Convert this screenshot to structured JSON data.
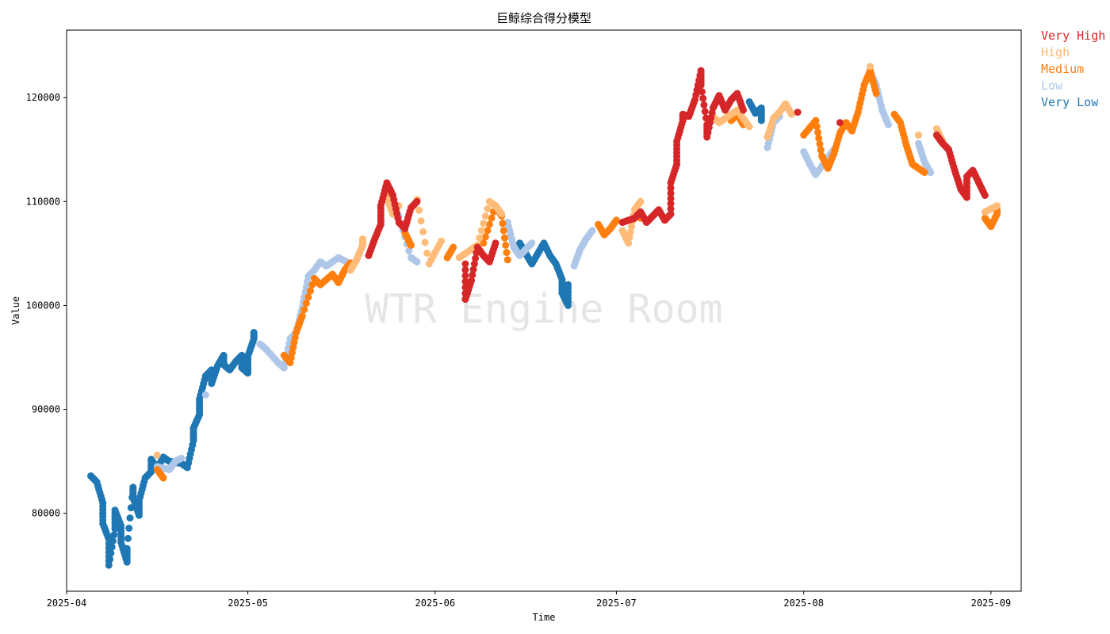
{
  "chart_data": {
    "type": "scatter",
    "title": "巨鲸综合得分模型",
    "xlabel": "Time",
    "ylabel": "Value",
    "watermark": "WTR Engine Room",
    "x_range": [
      "2025-04-01",
      "2025-09-06"
    ],
    "ylim": [
      72500,
      126500
    ],
    "y_ticks": [
      80000,
      90000,
      100000,
      110000,
      120000
    ],
    "x_ticks": [
      "2025-04-01",
      "2025-05-01",
      "2025-06-01",
      "2025-07-01",
      "2025-08-01",
      "2025-09-01"
    ],
    "x_tick_labels": [
      "2025-04",
      "2025-05",
      "2025-06",
      "2025-07",
      "2025-08",
      "2025-09"
    ],
    "legend_position": "outside-top-right",
    "legend": [
      {
        "key": "very_high",
        "label": "Very High",
        "color": "#d62728"
      },
      {
        "key": "high",
        "label": "High",
        "color": "#ffbb78"
      },
      {
        "key": "medium",
        "label": "Medium",
        "color": "#ff7f0e"
      },
      {
        "key": "low",
        "label": "Low",
        "color": "#aec7e8"
      },
      {
        "key": "very_low",
        "label": "Very Low",
        "color": "#1f77b4"
      }
    ],
    "series": [
      {
        "key": "very_low",
        "points": [
          [
            "2025-04-05",
            83600
          ],
          [
            "2025-04-06",
            83000
          ],
          [
            "2025-04-07",
            81000
          ],
          [
            "2025-04-07",
            79000
          ],
          [
            "2025-04-08",
            77500
          ],
          [
            "2025-04-08",
            75000
          ],
          [
            "2025-04-09",
            78500
          ],
          [
            "2025-04-09",
            80300
          ],
          [
            "2025-04-10",
            78800
          ],
          [
            "2025-04-10",
            77200
          ],
          [
            "2025-04-11",
            75300
          ],
          [
            "2025-04-11",
            76600
          ],
          [
            "2025-04-12",
            82500
          ],
          [
            "2025-04-12",
            81500
          ],
          [
            "2025-04-13",
            79800
          ],
          [
            "2025-04-13",
            81200
          ],
          [
            "2025-04-14",
            83400
          ],
          [
            "2025-04-15",
            84000
          ],
          [
            "2025-04-15",
            85200
          ],
          [
            "2025-04-16",
            84300
          ],
          [
            "2025-04-17",
            85400
          ],
          [
            "2025-04-18",
            85000
          ],
          [
            "2025-04-20",
            84800
          ],
          [
            "2025-04-21",
            84400
          ],
          [
            "2025-04-22",
            87000
          ],
          [
            "2025-04-22",
            88200
          ],
          [
            "2025-04-23",
            89500
          ],
          [
            "2025-04-23",
            91000
          ],
          [
            "2025-04-24",
            93200
          ],
          [
            "2025-04-25",
            93800
          ],
          [
            "2025-04-25",
            92500
          ],
          [
            "2025-04-26",
            94200
          ],
          [
            "2025-04-27",
            95200
          ],
          [
            "2025-04-27",
            94300
          ],
          [
            "2025-04-28",
            93800
          ],
          [
            "2025-04-29",
            94600
          ],
          [
            "2025-04-30",
            95200
          ],
          [
            "2025-04-30",
            94000
          ],
          [
            "2025-05-01",
            93500
          ],
          [
            "2025-05-01",
            95100
          ],
          [
            "2025-05-02",
            96800
          ],
          [
            "2025-05-02",
            97400
          ],
          [
            "2025-06-15",
            106000
          ],
          [
            "2025-06-16",
            105000
          ],
          [
            "2025-06-17",
            104000
          ],
          [
            "2025-06-18",
            105000
          ],
          [
            "2025-06-19",
            106000
          ],
          [
            "2025-06-20",
            104800
          ],
          [
            "2025-06-21",
            104000
          ],
          [
            "2025-06-22",
            102500
          ],
          [
            "2025-06-22",
            101200
          ],
          [
            "2025-06-23",
            100000
          ],
          [
            "2025-06-23",
            102000
          ],
          [
            "2025-07-23",
            119600
          ],
          [
            "2025-07-24",
            118500
          ],
          [
            "2025-07-25",
            119000
          ],
          [
            "2025-07-25",
            117800
          ]
        ]
      },
      {
        "key": "low",
        "points": [
          [
            "2025-04-16",
            84500
          ],
          [
            "2025-04-18",
            84200
          ],
          [
            "2025-04-19",
            85000
          ],
          [
            "2025-04-20",
            85300
          ],
          [
            "2025-04-24",
            91400
          ],
          [
            "2025-05-03",
            96300
          ],
          [
            "2025-05-04",
            95800
          ],
          [
            "2025-05-06",
            94500
          ],
          [
            "2025-05-07",
            94000
          ],
          [
            "2025-05-08",
            96800
          ],
          [
            "2025-05-09",
            97400
          ],
          [
            "2025-05-10",
            99800
          ],
          [
            "2025-05-11",
            102800
          ],
          [
            "2025-05-12",
            103400
          ],
          [
            "2025-05-13",
            104200
          ],
          [
            "2025-05-14",
            103800
          ],
          [
            "2025-05-16",
            104600
          ],
          [
            "2025-05-18",
            104000
          ],
          [
            "2025-05-26",
            108600
          ],
          [
            "2025-05-28",
            104600
          ],
          [
            "2025-05-29",
            104200
          ],
          [
            "2025-06-13",
            108000
          ],
          [
            "2025-06-14",
            105600
          ],
          [
            "2025-06-15",
            104800
          ],
          [
            "2025-06-16",
            105400
          ],
          [
            "2025-06-17",
            106000
          ],
          [
            "2025-06-24",
            103800
          ],
          [
            "2025-06-25",
            105400
          ],
          [
            "2025-06-26",
            106400
          ],
          [
            "2025-06-27",
            107200
          ],
          [
            "2025-07-26",
            115200
          ],
          [
            "2025-07-27",
            117600
          ],
          [
            "2025-07-28",
            118200
          ],
          [
            "2025-08-01",
            114800
          ],
          [
            "2025-08-02",
            113600
          ],
          [
            "2025-08-03",
            112600
          ],
          [
            "2025-08-05",
            114200
          ],
          [
            "2025-08-06",
            115000
          ],
          [
            "2025-08-12",
            122500
          ],
          [
            "2025-08-13",
            121200
          ],
          [
            "2025-08-14",
            118800
          ],
          [
            "2025-08-15",
            117400
          ],
          [
            "2025-08-20",
            115600
          ],
          [
            "2025-08-21",
            113800
          ],
          [
            "2025-08-22",
            112800
          ]
        ]
      },
      {
        "key": "medium",
        "points": [
          [
            "2025-04-16",
            84200
          ],
          [
            "2025-04-17",
            83400
          ],
          [
            "2025-05-07",
            95200
          ],
          [
            "2025-05-08",
            94500
          ],
          [
            "2025-05-09",
            97400
          ],
          [
            "2025-05-10",
            99000
          ],
          [
            "2025-05-12",
            102600
          ],
          [
            "2025-05-13",
            102000
          ],
          [
            "2025-05-15",
            103000
          ],
          [
            "2025-05-16",
            102200
          ],
          [
            "2025-05-17",
            103400
          ],
          [
            "2025-05-18",
            104100
          ],
          [
            "2025-05-27",
            107000
          ],
          [
            "2025-05-28",
            105800
          ],
          [
            "2025-06-03",
            104600
          ],
          [
            "2025-06-04",
            105600
          ],
          [
            "2025-06-09",
            106000
          ],
          [
            "2025-06-11",
            109600
          ],
          [
            "2025-06-12",
            108600
          ],
          [
            "2025-06-13",
            104400
          ],
          [
            "2025-06-28",
            107800
          ],
          [
            "2025-06-29",
            106800
          ],
          [
            "2025-06-30",
            107400
          ],
          [
            "2025-07-01",
            108200
          ],
          [
            "2025-07-05",
            108400
          ],
          [
            "2025-07-20",
            117800
          ],
          [
            "2025-07-21",
            118400
          ],
          [
            "2025-07-22",
            117400
          ],
          [
            "2025-08-01",
            116400
          ],
          [
            "2025-08-03",
            117800
          ],
          [
            "2025-08-04",
            114400
          ],
          [
            "2025-08-05",
            113200
          ],
          [
            "2025-08-06",
            114600
          ],
          [
            "2025-08-07",
            116600
          ],
          [
            "2025-08-08",
            117600
          ],
          [
            "2025-08-09",
            116800
          ],
          [
            "2025-08-10",
            118600
          ],
          [
            "2025-08-11",
            121200
          ],
          [
            "2025-08-12",
            122600
          ],
          [
            "2025-08-13",
            120400
          ],
          [
            "2025-08-16",
            118400
          ],
          [
            "2025-08-17",
            117600
          ],
          [
            "2025-08-18",
            115400
          ],
          [
            "2025-08-19",
            113600
          ],
          [
            "2025-08-21",
            112800
          ],
          [
            "2025-08-31",
            108400
          ],
          [
            "2025-09-01",
            107600
          ],
          [
            "2025-09-02",
            108800
          ],
          [
            "2025-09-02",
            109200
          ]
        ]
      },
      {
        "key": "high",
        "points": [
          [
            "2025-04-16",
            85600
          ],
          [
            "2025-05-18",
            103400
          ],
          [
            "2025-05-19",
            104400
          ],
          [
            "2025-05-20",
            105800
          ],
          [
            "2025-05-20",
            106400
          ],
          [
            "2025-05-24",
            111200
          ],
          [
            "2025-05-24",
            110400
          ],
          [
            "2025-05-25",
            108800
          ],
          [
            "2025-05-26",
            109600
          ],
          [
            "2025-05-29",
            110200
          ],
          [
            "2025-05-31",
            104000
          ],
          [
            "2025-06-02",
            106200
          ],
          [
            "2025-06-05",
            104600
          ],
          [
            "2025-06-07",
            105400
          ],
          [
            "2025-06-08",
            105800
          ],
          [
            "2025-06-10",
            110000
          ],
          [
            "2025-06-11",
            109600
          ],
          [
            "2025-06-12",
            108800
          ],
          [
            "2025-07-02",
            107200
          ],
          [
            "2025-07-03",
            106000
          ],
          [
            "2025-07-04",
            109200
          ],
          [
            "2025-07-05",
            110000
          ],
          [
            "2025-07-17",
            118200
          ],
          [
            "2025-07-18",
            117600
          ],
          [
            "2025-07-19",
            118000
          ],
          [
            "2025-07-21",
            118800
          ],
          [
            "2025-07-23",
            117200
          ],
          [
            "2025-07-26",
            116200
          ],
          [
            "2025-07-27",
            118000
          ],
          [
            "2025-07-28",
            118600
          ],
          [
            "2025-07-29",
            119400
          ],
          [
            "2025-07-30",
            118400
          ],
          [
            "2025-08-12",
            123000
          ],
          [
            "2025-08-20",
            116400
          ],
          [
            "2025-08-23",
            117000
          ],
          [
            "2025-08-24",
            115800
          ],
          [
            "2025-08-31",
            109000
          ],
          [
            "2025-09-02",
            109600
          ]
        ]
      },
      {
        "key": "very_high",
        "points": [
          [
            "2025-05-21",
            104800
          ],
          [
            "2025-05-22",
            106400
          ],
          [
            "2025-05-23",
            107800
          ],
          [
            "2025-05-23",
            109600
          ],
          [
            "2025-05-24",
            111800
          ],
          [
            "2025-05-25",
            110600
          ],
          [
            "2025-05-26",
            108000
          ],
          [
            "2025-05-27",
            107400
          ],
          [
            "2025-05-28",
            109400
          ],
          [
            "2025-05-29",
            110000
          ],
          [
            "2025-06-06",
            104000
          ],
          [
            "2025-06-06",
            100600
          ],
          [
            "2025-06-07",
            102400
          ],
          [
            "2025-06-08",
            105600
          ],
          [
            "2025-06-09",
            104800
          ],
          [
            "2025-06-10",
            104200
          ],
          [
            "2025-06-11",
            106000
          ],
          [
            "2025-07-02",
            108000
          ],
          [
            "2025-07-04",
            108400
          ],
          [
            "2025-07-05",
            109000
          ],
          [
            "2025-07-06",
            108000
          ],
          [
            "2025-07-07",
            108600
          ],
          [
            "2025-07-08",
            109200
          ],
          [
            "2025-07-09",
            108200
          ],
          [
            "2025-07-10",
            108800
          ],
          [
            "2025-07-10",
            111800
          ],
          [
            "2025-07-11",
            113600
          ],
          [
            "2025-07-11",
            115800
          ],
          [
            "2025-07-12",
            117800
          ],
          [
            "2025-07-12",
            118400
          ],
          [
            "2025-07-13",
            118200
          ],
          [
            "2025-07-14",
            119800
          ],
          [
            "2025-07-15",
            122600
          ],
          [
            "2025-07-15",
            121200
          ],
          [
            "2025-07-16",
            117400
          ],
          [
            "2025-07-16",
            116200
          ],
          [
            "2025-07-17",
            119000
          ],
          [
            "2025-07-18",
            120200
          ],
          [
            "2025-07-19",
            118800
          ],
          [
            "2025-07-20",
            119800
          ],
          [
            "2025-07-21",
            120400
          ],
          [
            "2025-07-22",
            118800
          ],
          [
            "2025-07-31",
            118600
          ],
          [
            "2025-08-07",
            117600
          ],
          [
            "2025-08-23",
            116400
          ],
          [
            "2025-08-24",
            115600
          ],
          [
            "2025-08-25",
            115000
          ],
          [
            "2025-08-26",
            113000
          ],
          [
            "2025-08-27",
            111200
          ],
          [
            "2025-08-28",
            110400
          ],
          [
            "2025-08-28",
            112400
          ],
          [
            "2025-08-29",
            113000
          ],
          [
            "2025-08-30",
            111800
          ],
          [
            "2025-08-31",
            110600
          ]
        ]
      }
    ]
  }
}
